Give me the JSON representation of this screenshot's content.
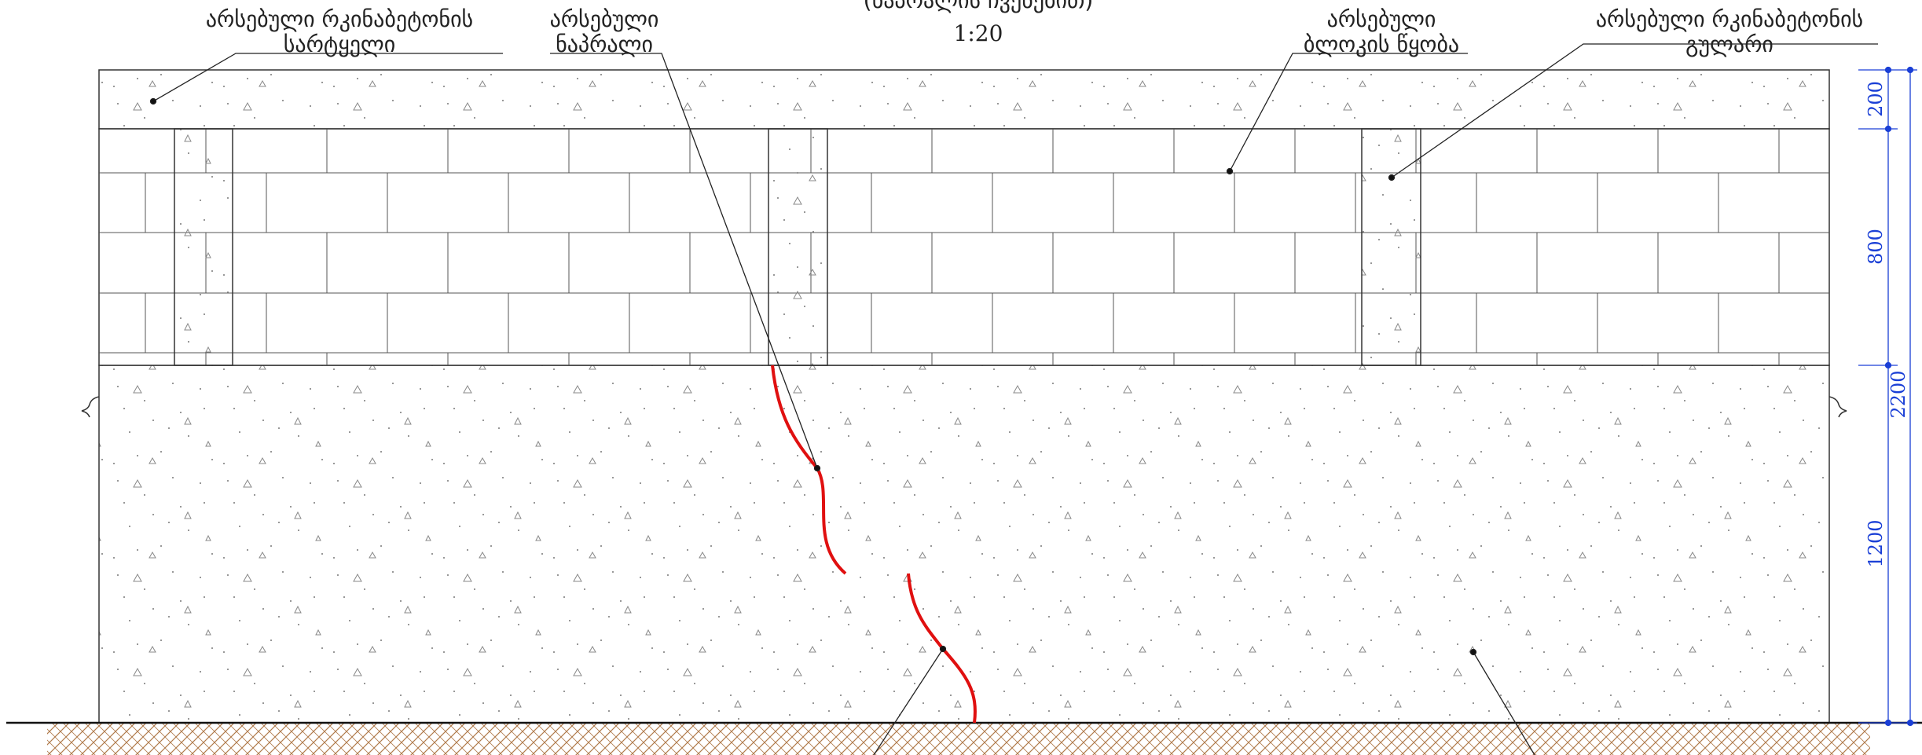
{
  "title": {
    "line1": "(ნაპრალის ჩვენებით)",
    "scale": "1:20"
  },
  "labels": [
    {
      "lines": [
        "არსებული რკინაბეტონის",
        "სარტყელი"
      ]
    },
    {
      "lines": [
        "არსებული",
        "ნაპრალი"
      ]
    },
    {
      "lines": [
        "არსებული",
        "ბლოკის წყობა"
      ]
    },
    {
      "lines": [
        "არსებული რკინაბეტონის",
        "გულარი"
      ]
    }
  ],
  "dimensions": [
    "200",
    "800",
    "2200",
    "1200"
  ]
}
